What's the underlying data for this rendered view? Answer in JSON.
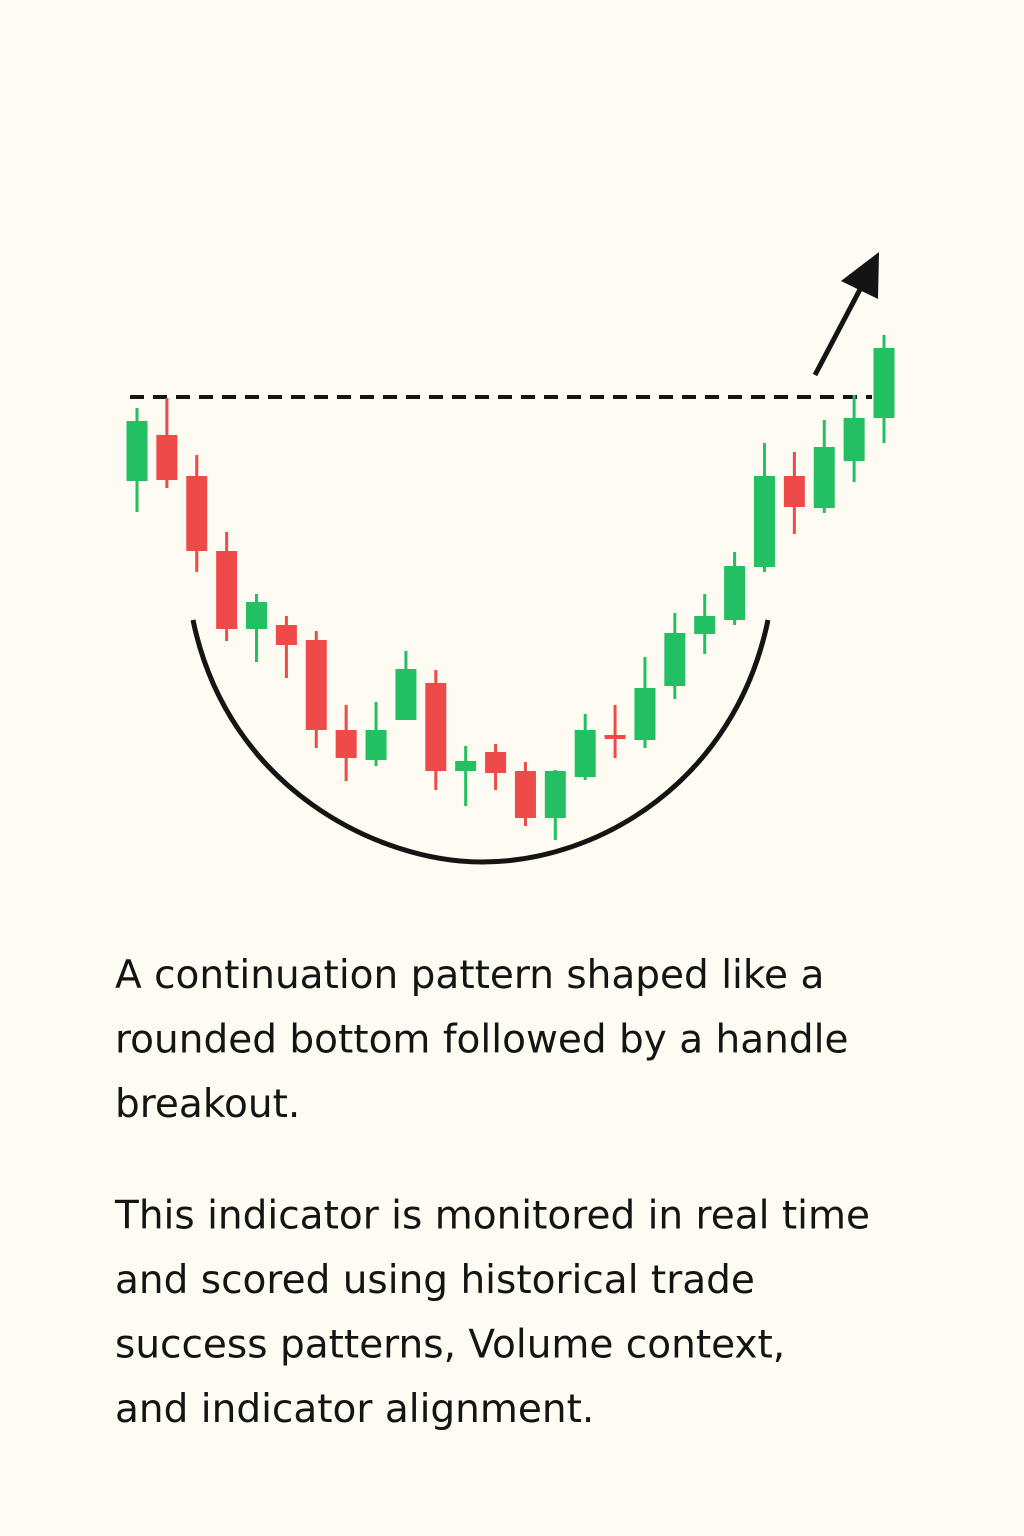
{
  "chart_data": {
    "type": "candlestick",
    "open": [
      419,
      465,
      424,
      349,
      271,
      275,
      260,
      170,
      140,
      180,
      217,
      129,
      148,
      129,
      82,
      123,
      165,
      160,
      214,
      266,
      280,
      333,
      424,
      392,
      439,
      482
    ],
    "high": [
      492,
      502,
      445,
      368,
      306,
      284,
      269,
      195,
      198,
      249,
      230,
      154,
      156,
      138,
      130,
      186,
      195,
      243,
      287,
      306,
      348,
      457,
      448,
      480,
      505,
      565
    ],
    "low": [
      388,
      412,
      328,
      259,
      238,
      222,
      152,
      119,
      134,
      180,
      110,
      94,
      110,
      74,
      60,
      120,
      142,
      152,
      201,
      246,
      275,
      328,
      366,
      387,
      418,
      457
    ],
    "close": [
      479,
      420,
      349,
      271,
      298,
      255,
      170,
      142,
      170,
      231,
      129,
      139,
      127,
      82,
      129,
      170,
      161,
      212,
      267,
      284,
      334,
      424,
      393,
      453,
      482,
      552
    ],
    "up_color": "#22bf63",
    "down_color": "#ef4a4a",
    "resistance": 503
  },
  "description": [
    [
      "A continuation pattern shaped like a",
      "rounded bottom followed by a handle",
      "breakout."
    ],
    [
      "This indicator is monitored in real time",
      "and scored using historical trade",
      "success patterns, Volume context,",
      "and indicator alignment."
    ]
  ]
}
